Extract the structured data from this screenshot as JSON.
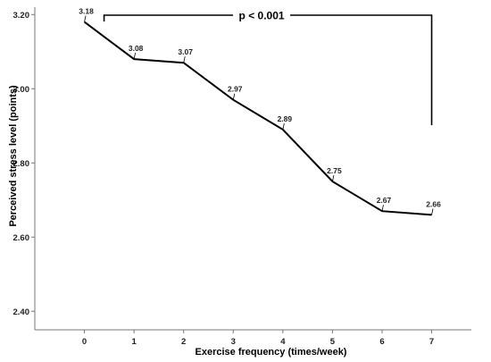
{
  "chart_data": {
    "type": "line",
    "xlabel": "Exercise frequency (times/week)",
    "ylabel": "Perceived stress level (points)",
    "x": [
      0,
      1,
      2,
      3,
      4,
      5,
      6,
      7
    ],
    "x_tick_labels": [
      "0",
      "1",
      "2",
      "3",
      "4",
      "5",
      "6",
      "7"
    ],
    "y_ticks": [
      2.4,
      2.6,
      2.8,
      3.0,
      3.2
    ],
    "y_tick_labels": [
      "2.40",
      "2.60",
      "2.80",
      "3.00",
      "3.20"
    ],
    "xlim": [
      -1,
      7.8
    ],
    "ylim": [
      2.35,
      3.22
    ],
    "grid": false,
    "series": [
      {
        "values": [
          3.18,
          3.08,
          3.07,
          2.97,
          2.89,
          2.75,
          2.67,
          2.66
        ],
        "data_labels": [
          "3.18",
          "3.08",
          "3.07",
          "2.97",
          "2.89",
          "2.75",
          "2.67",
          "2.66"
        ],
        "color": "#000000"
      }
    ],
    "annotation": {
      "text": "p < 0.001",
      "from_x": 0,
      "to_x": 7
    }
  }
}
